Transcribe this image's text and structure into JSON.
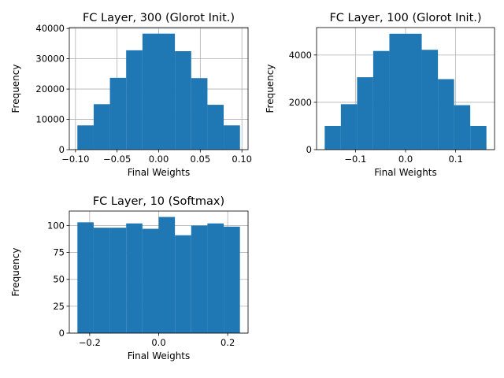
{
  "figure": {
    "background": "#ffffff",
    "bar_color": "#1f77b4",
    "grid_color": "#b0b0b0"
  },
  "chart_data": [
    {
      "type": "bar",
      "subtype": "histogram",
      "title": "FC Layer, 300 (Glorot Init.)",
      "xlabel": "Final Weights",
      "ylabel": "Frequency",
      "xlim": [
        -0.1074,
        0.1074
      ],
      "ylim": [
        0,
        40300
      ],
      "grid": true,
      "bin_edges": [
        -0.0977,
        -0.0781,
        -0.0586,
        -0.0391,
        -0.0195,
        0.0,
        0.0195,
        0.0391,
        0.0586,
        0.0781,
        0.0977
      ],
      "values": [
        8000,
        15000,
        23700,
        32800,
        38300,
        38300,
        32500,
        23600,
        14800,
        8000
      ],
      "xticks": [
        -0.1,
        -0.05,
        0.0,
        0.05,
        0.1
      ],
      "xtick_labels": [
        "−0.10",
        "−0.05",
        "0.00",
        "0.05",
        "0.10"
      ],
      "yticks": [
        0,
        10000,
        20000,
        30000,
        40000
      ],
      "ytick_labels": [
        "0",
        "10000",
        "20000",
        "30000",
        "40000"
      ]
    },
    {
      "type": "bar",
      "subtype": "histogram",
      "title": "FC Layer, 100 (Glorot Init.)",
      "xlabel": "Final Weights",
      "ylabel": "Frequency",
      "xlim": [
        -0.1776,
        0.1776
      ],
      "ylim": [
        0,
        5160
      ],
      "grid": true,
      "bin_edges": [
        -0.1614,
        -0.1291,
        -0.0968,
        -0.0646,
        -0.0323,
        0.0,
        0.0323,
        0.0646,
        0.0968,
        0.1291,
        0.1614
      ],
      "values": [
        1000,
        1920,
        3060,
        4170,
        4900,
        4900,
        4220,
        2980,
        1880,
        1000
      ],
      "xticks": [
        -0.1,
        0.0,
        0.1
      ],
      "xtick_labels": [
        "−0.1",
        "0.0",
        "0.1"
      ],
      "yticks": [
        0,
        2000,
        4000
      ],
      "ytick_labels": [
        "0",
        "2000",
        "4000"
      ]
    },
    {
      "type": "bar",
      "subtype": "histogram",
      "title": "FC Layer, 10 (Softmax)",
      "xlabel": "Final Weights",
      "ylabel": "Frequency",
      "xlim": [
        -0.259,
        0.259
      ],
      "ylim": [
        0,
        113.5
      ],
      "grid": true,
      "bin_edges": [
        -0.2355,
        -0.1884,
        -0.1413,
        -0.0942,
        -0.0471,
        0.0,
        0.0471,
        0.0942,
        0.1413,
        0.1884,
        0.2355
      ],
      "values": [
        103,
        98,
        98,
        102,
        97,
        108,
        91,
        100,
        102,
        99
      ],
      "xticks": [
        -0.2,
        0.0,
        0.2
      ],
      "xtick_labels": [
        "−0.2",
        "0.0",
        "0.2"
      ],
      "yticks": [
        0,
        25,
        50,
        75,
        100
      ],
      "ytick_labels": [
        "0",
        "25",
        "50",
        "75",
        "100"
      ]
    }
  ]
}
